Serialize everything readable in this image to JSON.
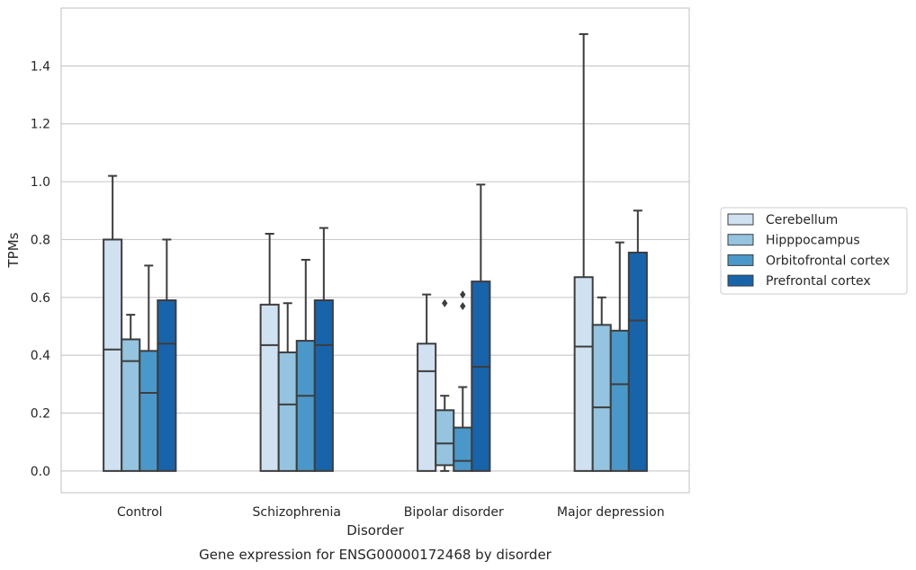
{
  "chart_data": {
    "type": "box",
    "title": "",
    "caption": "Gene expression for ENSG00000172468 by disorder",
    "xlabel": "Disorder",
    "ylabel": "TPMs",
    "ylim": [
      -0.075,
      1.6
    ],
    "yticks": [
      0.0,
      0.2,
      0.4,
      0.6,
      0.8,
      1.0,
      1.2,
      1.4
    ],
    "ytick_labels": [
      "0.0",
      "0.2",
      "0.4",
      "0.6",
      "0.8",
      "1.0",
      "1.2",
      "1.4"
    ],
    "grid": "horizontal",
    "legend_position": "right",
    "categories": [
      "Control",
      "Schizophrenia",
      "Bipolar disorder",
      "Major depression"
    ],
    "series": [
      {
        "name": "Cerebellum",
        "color": "#d0e1f2",
        "boxes": [
          {
            "whislo": 0.0,
            "q1": 0.0,
            "med": 0.42,
            "q3": 0.8,
            "whishi": 1.02,
            "fliers": []
          },
          {
            "whislo": 0.0,
            "q1": 0.0,
            "med": 0.435,
            "q3": 0.575,
            "whishi": 0.82,
            "fliers": []
          },
          {
            "whislo": 0.0,
            "q1": 0.0,
            "med": 0.345,
            "q3": 0.44,
            "whishi": 0.61,
            "fliers": []
          },
          {
            "whislo": 0.0,
            "q1": 0.0,
            "med": 0.43,
            "q3": 0.67,
            "whishi": 1.51,
            "fliers": []
          }
        ]
      },
      {
        "name": "Hipppocampus",
        "color": "#94c4df",
        "boxes": [
          {
            "whislo": 0.0,
            "q1": 0.0,
            "med": 0.38,
            "q3": 0.455,
            "whishi": 0.54,
            "fliers": []
          },
          {
            "whislo": 0.0,
            "q1": 0.0,
            "med": 0.23,
            "q3": 0.41,
            "whishi": 0.58,
            "fliers": []
          },
          {
            "whislo": 0.0,
            "q1": 0.02,
            "med": 0.095,
            "q3": 0.21,
            "whishi": 0.26,
            "fliers": [
              0.58
            ]
          },
          {
            "whislo": 0.0,
            "q1": 0.0,
            "med": 0.22,
            "q3": 0.505,
            "whishi": 0.6,
            "fliers": []
          }
        ]
      },
      {
        "name": "Orbitofrontal cortex",
        "color": "#4a98c9",
        "boxes": [
          {
            "whislo": 0.0,
            "q1": 0.0,
            "med": 0.27,
            "q3": 0.415,
            "whishi": 0.71,
            "fliers": []
          },
          {
            "whislo": 0.0,
            "q1": 0.0,
            "med": 0.26,
            "q3": 0.45,
            "whishi": 0.73,
            "fliers": []
          },
          {
            "whislo": 0.0,
            "q1": 0.0,
            "med": 0.035,
            "q3": 0.15,
            "whishi": 0.29,
            "fliers": [
              0.57,
              0.61
            ]
          },
          {
            "whislo": 0.0,
            "q1": 0.0,
            "med": 0.3,
            "q3": 0.485,
            "whishi": 0.79,
            "fliers": []
          }
        ]
      },
      {
        "name": "Prefrontal cortex",
        "color": "#1764ab",
        "boxes": [
          {
            "whislo": 0.0,
            "q1": 0.0,
            "med": 0.44,
            "q3": 0.59,
            "whishi": 0.8,
            "fliers": []
          },
          {
            "whislo": 0.0,
            "q1": 0.0,
            "med": 0.435,
            "q3": 0.59,
            "whishi": 0.84,
            "fliers": []
          },
          {
            "whislo": 0.0,
            "q1": 0.0,
            "med": 0.36,
            "q3": 0.655,
            "whishi": 0.99,
            "fliers": []
          },
          {
            "whislo": 0.0,
            "q1": 0.0,
            "med": 0.52,
            "q3": 0.755,
            "whishi": 0.9,
            "fliers": []
          }
        ]
      }
    ]
  }
}
